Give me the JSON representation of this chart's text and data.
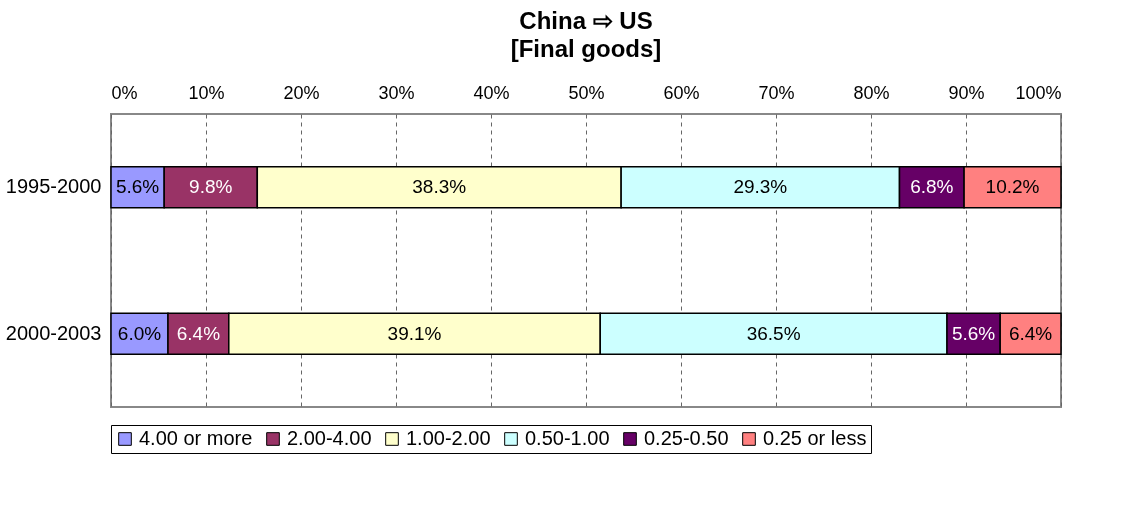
{
  "chart_data": {
    "type": "bar",
    "orientation": "horizontal",
    "stacked": true,
    "title": "China ⇨ US",
    "subtitle": "[Final goods]",
    "categories": [
      "1995-2000",
      "2000-2003"
    ],
    "series": [
      {
        "name": "4.00 or more",
        "color": "#9999ff",
        "values": [
          5.6,
          6.0
        ],
        "value_labels": [
          "5.6%",
          "6.0%"
        ]
      },
      {
        "name": "2.00-4.00",
        "color": "#993366",
        "values": [
          9.8,
          6.4
        ],
        "value_labels": [
          "9.8%",
          "6.4%"
        ]
      },
      {
        "name": "1.00-2.00",
        "color": "#ffffcc",
        "values": [
          38.3,
          39.1
        ],
        "value_labels": [
          "38.3%",
          "39.1%"
        ]
      },
      {
        "name": "0.50-1.00",
        "color": "#ccffff",
        "values": [
          29.3,
          36.5
        ],
        "value_labels": [
          "29.3%",
          "36.5%"
        ]
      },
      {
        "name": "0.25-0.50",
        "color": "#660066",
        "values": [
          6.8,
          5.6
        ],
        "value_labels": [
          "6.8%",
          "5.6%"
        ]
      },
      {
        "name": "0.25 or less",
        "color": "#ff8080",
        "values": [
          10.2,
          6.4
        ],
        "value_labels": [
          "10.2%",
          "6.4%"
        ]
      }
    ],
    "xlim": [
      0,
      100
    ],
    "xticks": [
      {
        "value": 0,
        "label": "0%"
      },
      {
        "value": 10,
        "label": "10%"
      },
      {
        "value": 20,
        "label": "20%"
      },
      {
        "value": 30,
        "label": "30%"
      },
      {
        "value": 40,
        "label": "40%"
      },
      {
        "value": 50,
        "label": "50%"
      },
      {
        "value": 60,
        "label": "60%"
      },
      {
        "value": 70,
        "label": "70%"
      },
      {
        "value": 80,
        "label": "80%"
      },
      {
        "value": 90,
        "label": "90%"
      },
      {
        "value": 100,
        "label": "100%"
      }
    ],
    "grid": "x",
    "line_style": "dashed",
    "legend": "bottom"
  }
}
